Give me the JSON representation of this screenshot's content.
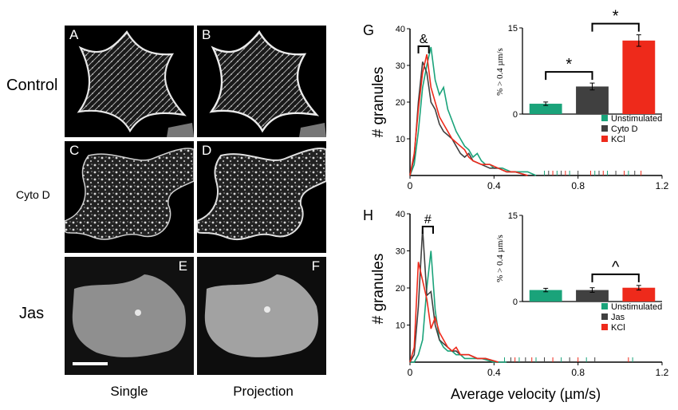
{
  "rows": [
    {
      "label": "Control",
      "size": 20
    },
    {
      "label": "Cyto D",
      "size": 14
    },
    {
      "label": "Jas",
      "size": 20
    }
  ],
  "columns": [
    "Single",
    "Projection"
  ],
  "panels": [
    "A",
    "B",
    "C",
    "D",
    "E",
    "F"
  ],
  "x_axis_label": "Average velocity (µm/s)",
  "colors": {
    "unstimulated": "#1aa37a",
    "drug": "#404040",
    "kcl": "#ee2a1b"
  },
  "chart_data": [
    {
      "panel": "G",
      "type": "line",
      "ylabel": "# granules",
      "xlim": [
        0,
        1.2
      ],
      "ylim": [
        0,
        40
      ],
      "xticks": [
        "0",
        "0.4",
        "0.8",
        "1.2"
      ],
      "yticks": [
        "10",
        "20",
        "30",
        "40"
      ],
      "annotation": "&",
      "series": [
        {
          "name": "Unstimulated",
          "color": "#1aa37a",
          "x": [
            0.0,
            0.02,
            0.04,
            0.06,
            0.08,
            0.1,
            0.12,
            0.14,
            0.16,
            0.18,
            0.2,
            0.22,
            0.24,
            0.26,
            0.28,
            0.3,
            0.32,
            0.34,
            0.36,
            0.38,
            0.4,
            0.44,
            0.48,
            0.52,
            0.56,
            0.6
          ],
          "y": [
            0,
            3,
            12,
            24,
            30,
            35,
            26,
            22,
            24,
            18,
            15,
            12,
            10,
            8,
            7,
            5,
            6,
            4,
            3,
            3,
            2,
            2,
            1,
            1,
            1,
            0
          ]
        },
        {
          "name": "Cyto D",
          "color": "#404040",
          "x": [
            0.0,
            0.02,
            0.04,
            0.06,
            0.08,
            0.1,
            0.12,
            0.14,
            0.16,
            0.18,
            0.2,
            0.22,
            0.24,
            0.26,
            0.28,
            0.3,
            0.34,
            0.38,
            0.42,
            0.46,
            0.5,
            0.56
          ],
          "y": [
            0,
            5,
            20,
            31,
            28,
            20,
            18,
            14,
            12,
            11,
            10,
            8,
            6,
            5,
            6,
            4,
            3,
            2,
            2,
            1,
            1,
            0
          ]
        },
        {
          "name": "KCl",
          "color": "#ee2a1b",
          "x": [
            0.0,
            0.02,
            0.04,
            0.06,
            0.08,
            0.1,
            0.12,
            0.14,
            0.16,
            0.18,
            0.2,
            0.22,
            0.24,
            0.26,
            0.28,
            0.3,
            0.34,
            0.38,
            0.42,
            0.46,
            0.5,
            0.56
          ],
          "y": [
            0,
            6,
            18,
            28,
            33,
            24,
            20,
            16,
            14,
            12,
            10,
            9,
            8,
            7,
            5,
            4,
            3,
            3,
            2,
            1,
            1,
            0
          ]
        }
      ],
      "inset": {
        "type": "bar",
        "ylabel": "% > 0.4 µm/s",
        "ylim": [
          0,
          15
        ],
        "yticks": [
          "0",
          "15"
        ],
        "categories": [
          "Unstimulated",
          "Cyto D",
          "KCl"
        ],
        "values": [
          1.8,
          4.8,
          12.8
        ],
        "errors": [
          0.3,
          0.6,
          1.0
        ],
        "colors": [
          "#1aa37a",
          "#404040",
          "#ee2a1b"
        ],
        "significance": [
          {
            "from": 0,
            "to": 1,
            "label": "*"
          },
          {
            "from": 1,
            "to": 2,
            "label": "*"
          }
        ]
      },
      "legend": [
        "Unstimulated",
        "Cyto D",
        "KCl"
      ]
    },
    {
      "panel": "H",
      "type": "line",
      "ylabel": "# granules",
      "xlim": [
        0,
        1.2
      ],
      "ylim": [
        0,
        40
      ],
      "xticks": [
        "0",
        "0.4",
        "0.8",
        "1.2"
      ],
      "yticks": [
        "10",
        "20",
        "30",
        "40"
      ],
      "annotation": "#",
      "series": [
        {
          "name": "Unstimulated",
          "color": "#1aa37a",
          "x": [
            0.0,
            0.02,
            0.04,
            0.06,
            0.08,
            0.1,
            0.12,
            0.14,
            0.16,
            0.18,
            0.2,
            0.22,
            0.24,
            0.26,
            0.3,
            0.34,
            0.4,
            0.46
          ],
          "y": [
            0,
            0,
            2,
            6,
            20,
            30,
            14,
            6,
            4,
            3,
            3,
            2,
            2,
            1,
            1,
            1,
            0,
            0
          ]
        },
        {
          "name": "Jas",
          "color": "#404040",
          "x": [
            0.0,
            0.02,
            0.04,
            0.06,
            0.08,
            0.1,
            0.12,
            0.14,
            0.16,
            0.18,
            0.2,
            0.22,
            0.24,
            0.28,
            0.32,
            0.36,
            0.42
          ],
          "y": [
            0,
            2,
            15,
            36,
            18,
            19,
            10,
            6,
            5,
            4,
            3,
            3,
            2,
            2,
            1,
            1,
            0
          ]
        },
        {
          "name": "KCl",
          "color": "#ee2a1b",
          "x": [
            0.0,
            0.02,
            0.04,
            0.06,
            0.08,
            0.1,
            0.12,
            0.14,
            0.16,
            0.18,
            0.2,
            0.22,
            0.24,
            0.28,
            0.32,
            0.36,
            0.42
          ],
          "y": [
            0,
            4,
            27,
            22,
            17,
            9,
            12,
            8,
            6,
            4,
            3,
            4,
            2,
            2,
            1,
            1,
            0
          ]
        }
      ],
      "inset": {
        "type": "bar",
        "ylabel": "% > 0.4 µm/s",
        "ylim": [
          0,
          15
        ],
        "yticks": [
          "0",
          "15"
        ],
        "categories": [
          "Unstimulated",
          "Jas",
          "KCl"
        ],
        "values": [
          2.0,
          2.0,
          2.4
        ],
        "errors": [
          0.3,
          0.4,
          0.4
        ],
        "colors": [
          "#1aa37a",
          "#404040",
          "#ee2a1b"
        ],
        "significance": [
          {
            "from": 1,
            "to": 2,
            "label": "^"
          }
        ]
      },
      "legend": [
        "Unstimulated",
        "Jas",
        "KCl"
      ]
    }
  ]
}
